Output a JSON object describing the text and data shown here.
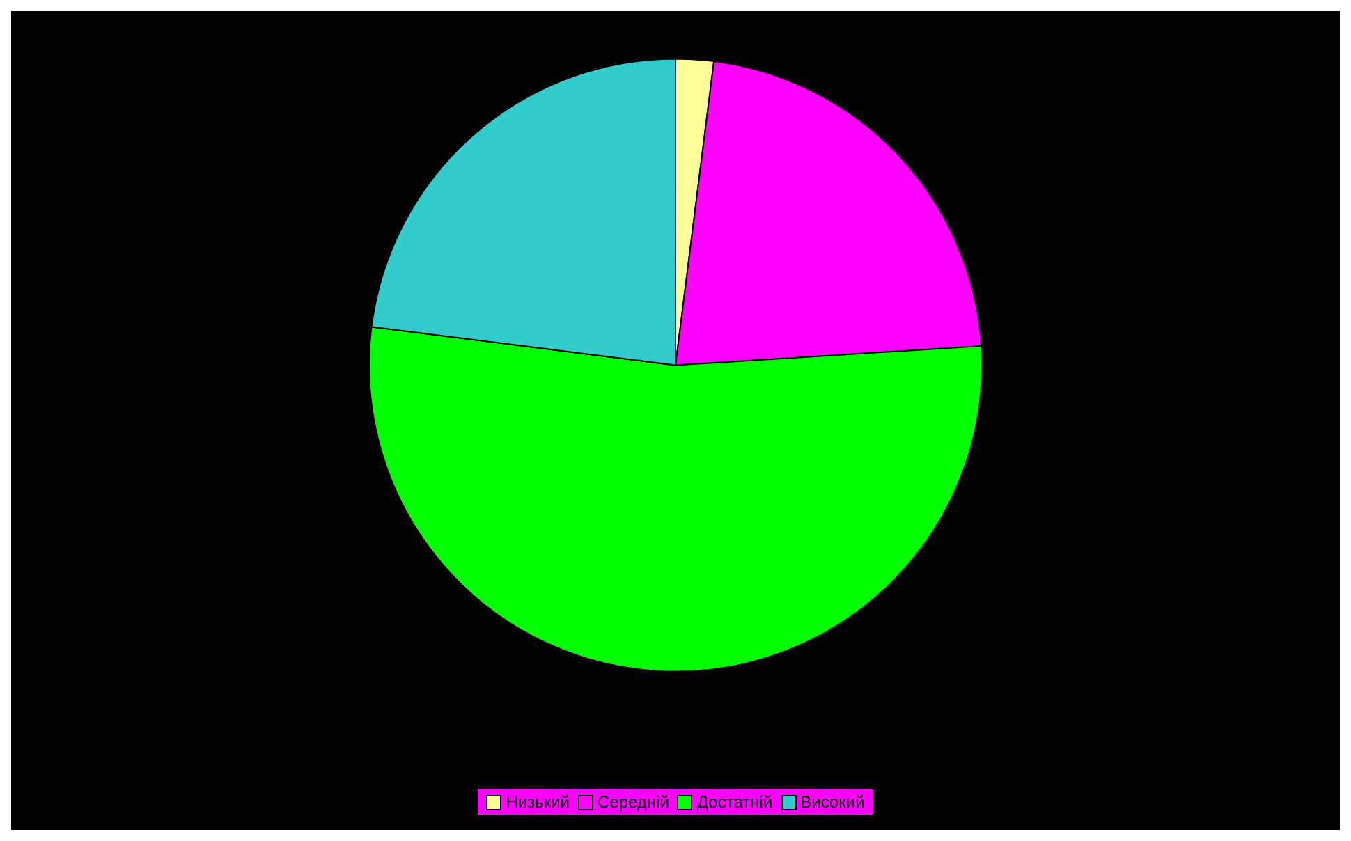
{
  "chart_data": {
    "type": "pie",
    "categories": [
      "Низький",
      "Середній",
      "Достатній",
      "Високий"
    ],
    "values": [
      2,
      22,
      53,
      23
    ],
    "colors": [
      "#ffff99",
      "#ff00ff",
      "#00ff00",
      "#33cccc"
    ],
    "legend": "bottom"
  }
}
